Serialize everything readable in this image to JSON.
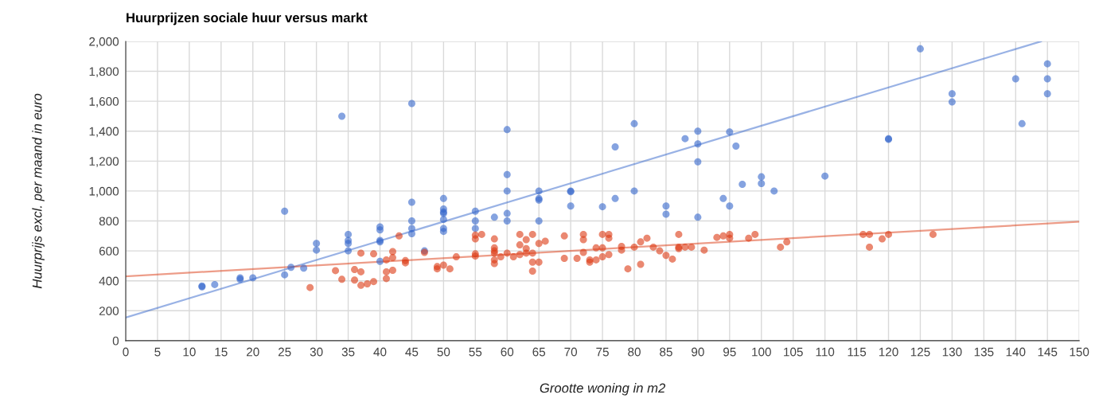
{
  "chart_data": {
    "type": "scatter",
    "title": "Huurprijzen sociale huur versus markt",
    "xlabel": "Grootte woning in m2",
    "ylabel": "Huurprijs excl. per maand in euro",
    "xlim": [
      0,
      150
    ],
    "xticks": [
      0,
      5,
      10,
      15,
      20,
      25,
      30,
      35,
      40,
      45,
      50,
      55,
      60,
      65,
      70,
      75,
      80,
      85,
      90,
      95,
      100,
      105,
      110,
      115,
      120,
      125,
      130,
      135,
      140,
      145,
      150
    ],
    "ylim": [
      0,
      2000
    ],
    "yticks": [
      0,
      200,
      400,
      600,
      800,
      {
        "value": 1000,
        "label": "1,000"
      },
      {
        "value": 1200,
        "label": "1,200"
      },
      {
        "value": 1400,
        "label": "1,400"
      },
      {
        "value": 1600,
        "label": "1,600"
      },
      {
        "value": 1800,
        "label": "1,800"
      },
      {
        "value": 2000,
        "label": "2,000"
      }
    ],
    "grid": true,
    "series": [
      {
        "marker": "circle",
        "color": "#3366cc",
        "x": [
          12,
          12,
          14,
          18,
          18,
          20,
          25,
          25,
          26,
          28,
          30,
          30,
          34,
          35,
          35,
          35,
          35,
          40,
          40,
          40,
          40,
          40,
          45,
          45,
          45,
          45,
          45,
          47,
          50,
          50,
          50,
          50,
          50,
          50,
          50,
          55,
          55,
          55,
          58,
          60,
          60,
          60,
          60,
          60,
          65,
          65,
          65,
          65,
          70,
          70,
          70,
          75,
          77,
          77,
          80,
          80,
          85,
          85,
          88,
          90,
          90,
          90,
          90,
          94,
          95,
          95,
          96,
          97,
          100,
          100,
          102,
          110,
          120,
          120,
          125,
          130,
          130,
          140,
          141,
          145,
          145,
          145
        ],
        "values": [
          360,
          365,
          375,
          420,
          410,
          420,
          865,
          440,
          490,
          485,
          650,
          605,
          1500,
          710,
          670,
          650,
          600,
          760,
          740,
          670,
          660,
          530,
          1585,
          925,
          800,
          750,
          715,
          600,
          950,
          880,
          860,
          850,
          810,
          750,
          730,
          865,
          800,
          750,
          825,
          1410,
          1110,
          1000,
          850,
          800,
          1000,
          950,
          940,
          800,
          1000,
          995,
          900,
          895,
          1295,
          950,
          1450,
          1000,
          900,
          845,
          1350,
          1400,
          1315,
          1195,
          825,
          950,
          1395,
          900,
          1300,
          1045,
          1095,
          1050,
          1000,
          1100,
          1350,
          1345,
          1950,
          1650,
          1595,
          1750,
          1450,
          1850,
          1750,
          1650
        ]
      },
      {
        "marker": "circle",
        "color": "#dc3912",
        "x": [
          29,
          33,
          34,
          36,
          36,
          37,
          37,
          37,
          38,
          39,
          39,
          41,
          41,
          41,
          42,
          42,
          42,
          43,
          44,
          44,
          47,
          49,
          49,
          50,
          51,
          52,
          55,
          55,
          55,
          55,
          56,
          58,
          58,
          58,
          58,
          58,
          58,
          59,
          60,
          61,
          62,
          62,
          62,
          63,
          63,
          63,
          64,
          64,
          64,
          64,
          65,
          65,
          66,
          69,
          69,
          71,
          72,
          72,
          72,
          73,
          73,
          74,
          74,
          75,
          75,
          75,
          76,
          76,
          76,
          78,
          78,
          79,
          80,
          81,
          81,
          82,
          83,
          84,
          85,
          86,
          87,
          87,
          87,
          88,
          89,
          91,
          93,
          94,
          95,
          95,
          98,
          99,
          103,
          104,
          116,
          117,
          117,
          119,
          120,
          127
        ],
        "values": [
          355,
          468,
          410,
          475,
          405,
          585,
          460,
          370,
          380,
          580,
          395,
          540,
          460,
          415,
          595,
          555,
          470,
          700,
          535,
          520,
          590,
          495,
          480,
          505,
          480,
          560,
          705,
          680,
          580,
          565,
          710,
          680,
          620,
          600,
          585,
          540,
          515,
          560,
          585,
          560,
          710,
          640,
          575,
          675,
          615,
          585,
          710,
          585,
          525,
          465,
          650,
          525,
          665,
          700,
          550,
          550,
          710,
          675,
          590,
          540,
          525,
          620,
          540,
          710,
          620,
          560,
          710,
          685,
          575,
          630,
          605,
          480,
          625,
          660,
          510,
          685,
          625,
          600,
          570,
          545,
          710,
          625,
          615,
          625,
          625,
          605,
          690,
          700,
          710,
          685,
          685,
          710,
          625,
          660,
          710,
          710,
          625,
          680,
          710,
          710
        ]
      },
      {
        "type": "line",
        "marker": "none",
        "color": "#3366cc",
        "x": [
          0,
          144
        ],
        "values": [
          155,
          2000
        ]
      },
      {
        "type": "line",
        "marker": "none",
        "color": "#dc3912",
        "x": [
          0,
          150
        ],
        "values": [
          430,
          795
        ]
      }
    ]
  }
}
